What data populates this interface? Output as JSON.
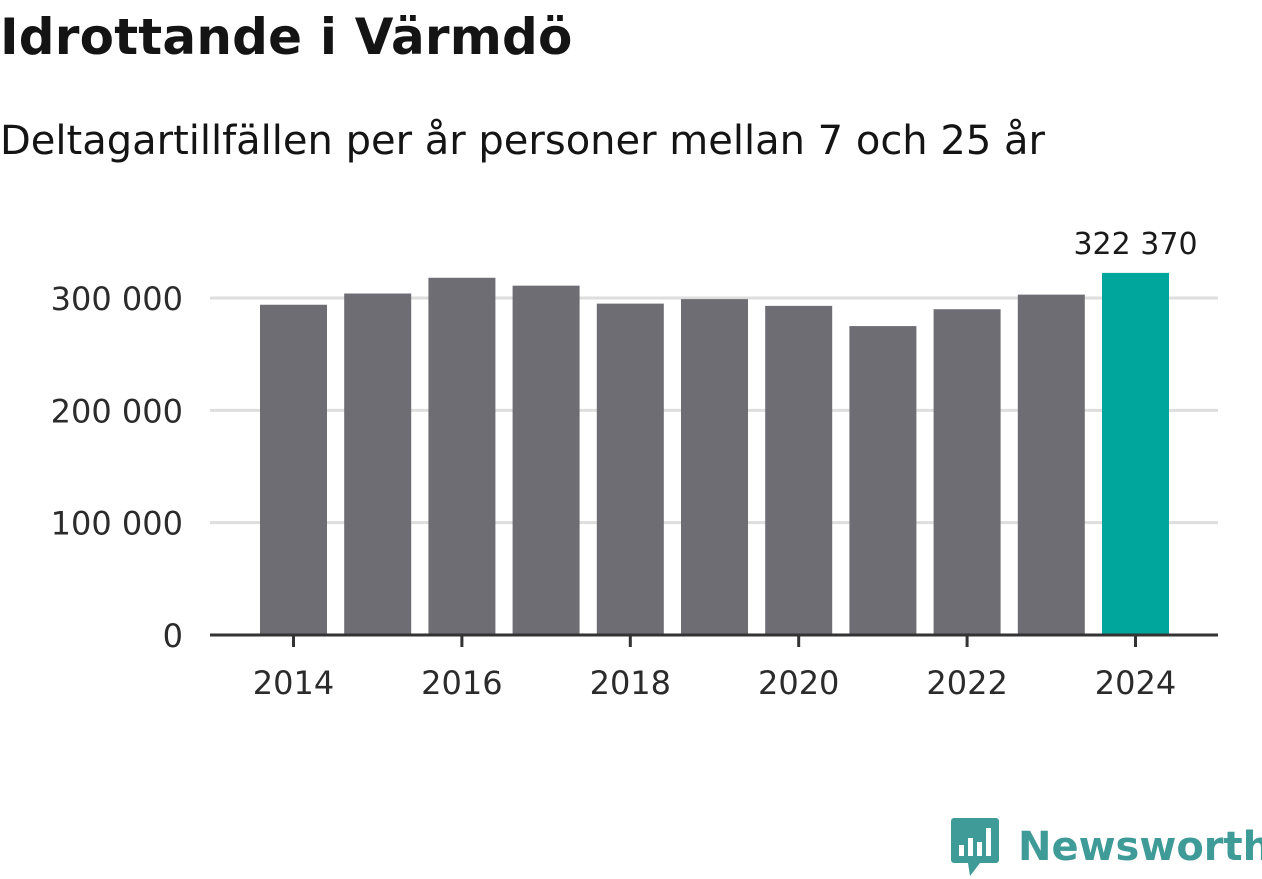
{
  "chart_data": {
    "type": "bar",
    "title": "Idrottande i Värmdö",
    "subtitle": "Deltagartillfällen per år personer mellan 7 och 25 år",
    "categories": [
      2014,
      2015,
      2016,
      2017,
      2018,
      2019,
      2020,
      2021,
      2022,
      2023,
      2024
    ],
    "values": [
      294000,
      304000,
      318000,
      311000,
      295000,
      299000,
      293000,
      275000,
      290000,
      303000,
      322370
    ],
    "highlight_index": 10,
    "highlight_label": "322 370",
    "ylim": [
      0,
      340000
    ],
    "yticks": [
      0,
      100000,
      200000,
      300000
    ],
    "ytick_labels": [
      "0",
      "100 000",
      "200 000",
      "300 000"
    ],
    "xtick_labels": [
      "2014",
      "2016",
      "2018",
      "2020",
      "2022",
      "2024"
    ],
    "xtick_years": [
      2014,
      2016,
      2018,
      2020,
      2022,
      2024
    ],
    "xlabel": "",
    "ylabel": "",
    "grid": true,
    "colors": {
      "bar": "#6e6d73",
      "highlight": "#00a59b",
      "grid": "#dedede",
      "axis": "#333333",
      "text": "#2b2b2b"
    }
  },
  "brand": {
    "name": "Newsworthy",
    "color": "#3f9b98",
    "icon": "newsworthy-logo-icon"
  }
}
